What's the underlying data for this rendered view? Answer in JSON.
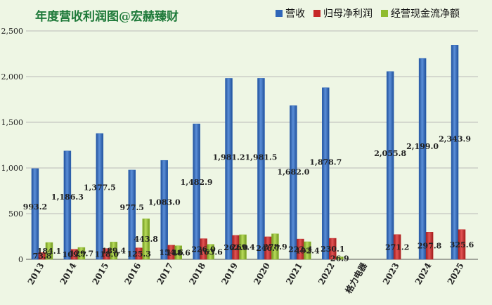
{
  "chart_data": {
    "type": "bar",
    "title": "年度营收利润图@宏赫臻财",
    "legend_position": "top-right",
    "grid": true,
    "ylim": [
      0,
      2500
    ],
    "yticks": [
      "0",
      "500",
      "1,000",
      "1,500",
      "2,000",
      "2,500"
    ],
    "categories": [
      "2013",
      "2014",
      "2015",
      "2016",
      "2017",
      "2018",
      "2019",
      "2020",
      "2021",
      "2022",
      "格力电器",
      "2023",
      "2024",
      "2025"
    ],
    "series": [
      {
        "name": "营收",
        "color": "#2f66b8",
        "values": [
          993.2,
          1186.3,
          1377.5,
          977.5,
          1083.0,
          1482.9,
          1981.2,
          1981.5,
          1682.0,
          1878.7,
          null,
          2055.8,
          2199.0,
          2343.9
        ],
        "labels": [
          "993.2",
          "1,186.3",
          "1,377.5",
          "977.5",
          "1,083.0",
          "1,482.9",
          "1,981.2",
          "1,981.5",
          "1,682.0",
          "1,878.7",
          "",
          "2,055.8",
          "2,199.0",
          "2,343.9"
        ]
      },
      {
        "name": "归母净利润",
        "color": "#c62828",
        "values": [
          73.8,
          109.7,
          118.0,
          125.3,
          154.6,
          226.0,
          262.0,
          246.7,
          222.4,
          230.1,
          null,
          271.2,
          297.8,
          325.6
        ],
        "labels": [
          "73.8",
          "109.7",
          "118.0",
          "125.3",
          "154.6",
          "226.0",
          "262.0",
          "246.7",
          "222.4",
          "230.1",
          "",
          "271.2",
          "297.8",
          "325.6"
        ]
      },
      {
        "name": "经营现金流净额",
        "color": "#8fbc2e",
        "values": [
          184.1,
          129.7,
          189.4,
          443.8,
          148.6,
          163.6,
          269.4,
          278.9,
          192.4,
          26.9,
          null,
          null,
          null,
          null
        ],
        "labels": [
          "184.1",
          "129.7",
          "189.4",
          "443.8",
          "148.6",
          "163.6",
          "269.4",
          "278.9",
          "192.4",
          "26.9",
          "",
          "",
          "",
          ""
        ]
      }
    ]
  }
}
